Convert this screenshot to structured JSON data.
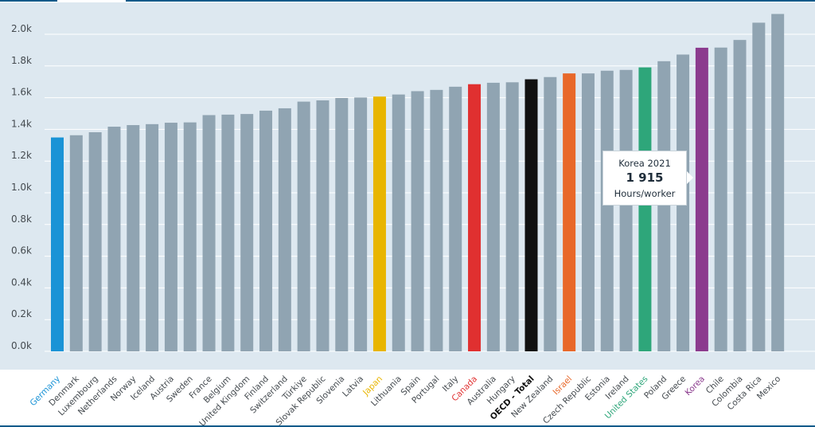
{
  "chart_data": {
    "type": "bar",
    "title": "",
    "xlabel": "",
    "ylabel": "",
    "ylim": [
      0,
      2200
    ],
    "yticks": [
      0,
      200,
      400,
      600,
      800,
      1000,
      1200,
      1400,
      1600,
      1800,
      2000
    ],
    "ytick_labels": [
      "0.0k",
      "0.2k",
      "0.4k",
      "0.6k",
      "0.8k",
      "1.0k",
      "1.2k",
      "1.4k",
      "1.6k",
      "1.8k",
      "2.0k"
    ],
    "grid": true,
    "default_color": "#90a4b2",
    "default_label_color": "#444a4f",
    "categories": [
      "Germany",
      "Denmark",
      "Luxembourg",
      "Netherlands",
      "Norway",
      "Iceland",
      "Austria",
      "Sweden",
      "France",
      "Belgium",
      "United Kingdom",
      "Finland",
      "Switzerland",
      "Türkiye",
      "Slovak Republic",
      "Slovenia",
      "Latvia",
      "Japan",
      "Lithuania",
      "Spain",
      "Portugal",
      "Italy",
      "Canada",
      "Australia",
      "Hungary",
      "OECD - Total",
      "New Zealand",
      "Israel",
      "Czech Republic",
      "Estonia",
      "Ireland",
      "United States",
      "Poland",
      "Greece",
      "Korea",
      "Chile",
      "Colombia",
      "Costa Rica",
      "Mexico"
    ],
    "values": [
      1349,
      1363,
      1382,
      1417,
      1427,
      1433,
      1442,
      1444,
      1490,
      1493,
      1497,
      1518,
      1533,
      1575,
      1583,
      1598,
      1601,
      1607,
      1620,
      1641,
      1649,
      1669,
      1685,
      1694,
      1697,
      1716,
      1730,
      1753,
      1753,
      1770,
      1775,
      1791,
      1830,
      1872,
      1915,
      1916,
      1964,
      2073,
      2128
    ],
    "highlights": {
      "Germany": {
        "bar": "#1a93d6",
        "label": "#1a93d6"
      },
      "Japan": {
        "bar": "#e8b500",
        "label": "#e8b500"
      },
      "Canada": {
        "bar": "#e03030",
        "label": "#e03030"
      },
      "OECD - Total": {
        "bar": "#111111",
        "label": "#111111",
        "bold": true
      },
      "Israel": {
        "bar": "#e8682a",
        "label": "#e8682a"
      },
      "United States": {
        "bar": "#2ea67a",
        "label": "#2ea67a"
      },
      "Korea": {
        "bar": "#8b3b8e",
        "label": "#8b3b8e"
      }
    }
  },
  "tooltip": {
    "title": "Korea 2021",
    "value": "1 915",
    "unit": "Hours/worker"
  }
}
